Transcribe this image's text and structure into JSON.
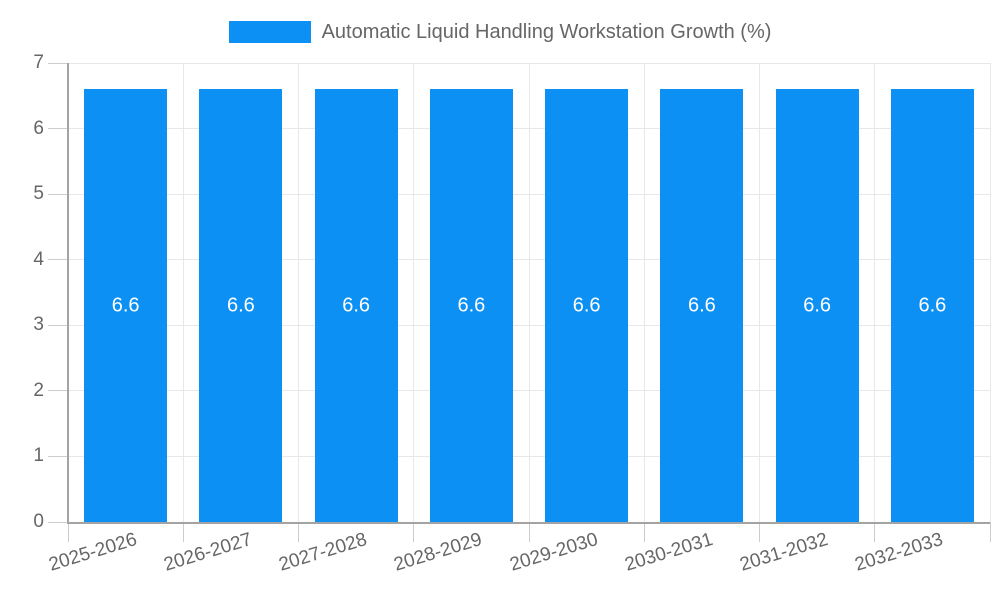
{
  "chart_data": {
    "type": "bar",
    "title": "Automatic Liquid Handling Workstation Growth (%)",
    "categories": [
      "2025-2026",
      "2026-2027",
      "2027-2028",
      "2028-2029",
      "2029-2030",
      "2030-2031",
      "2031-2032",
      "2032-2033"
    ],
    "values": [
      6.6,
      6.6,
      6.6,
      6.6,
      6.6,
      6.6,
      6.6,
      6.6
    ],
    "bar_labels": [
      "6.6",
      "6.6",
      "6.6",
      "6.6",
      "6.6",
      "6.6",
      "6.6",
      "6.6"
    ],
    "xlabel": "",
    "ylabel": "",
    "ylim": [
      0,
      7
    ],
    "yticks": [
      0,
      1,
      2,
      3,
      4,
      5,
      6,
      7
    ],
    "grid": true,
    "legend_position": "top",
    "colors": {
      "bar": "#0c90f4",
      "bar_label": "#ffffff",
      "tick_label": "#666666",
      "grid": "#e8e8e8",
      "tick_mark": "#cccccc",
      "axis": "#a3a3a3"
    }
  }
}
